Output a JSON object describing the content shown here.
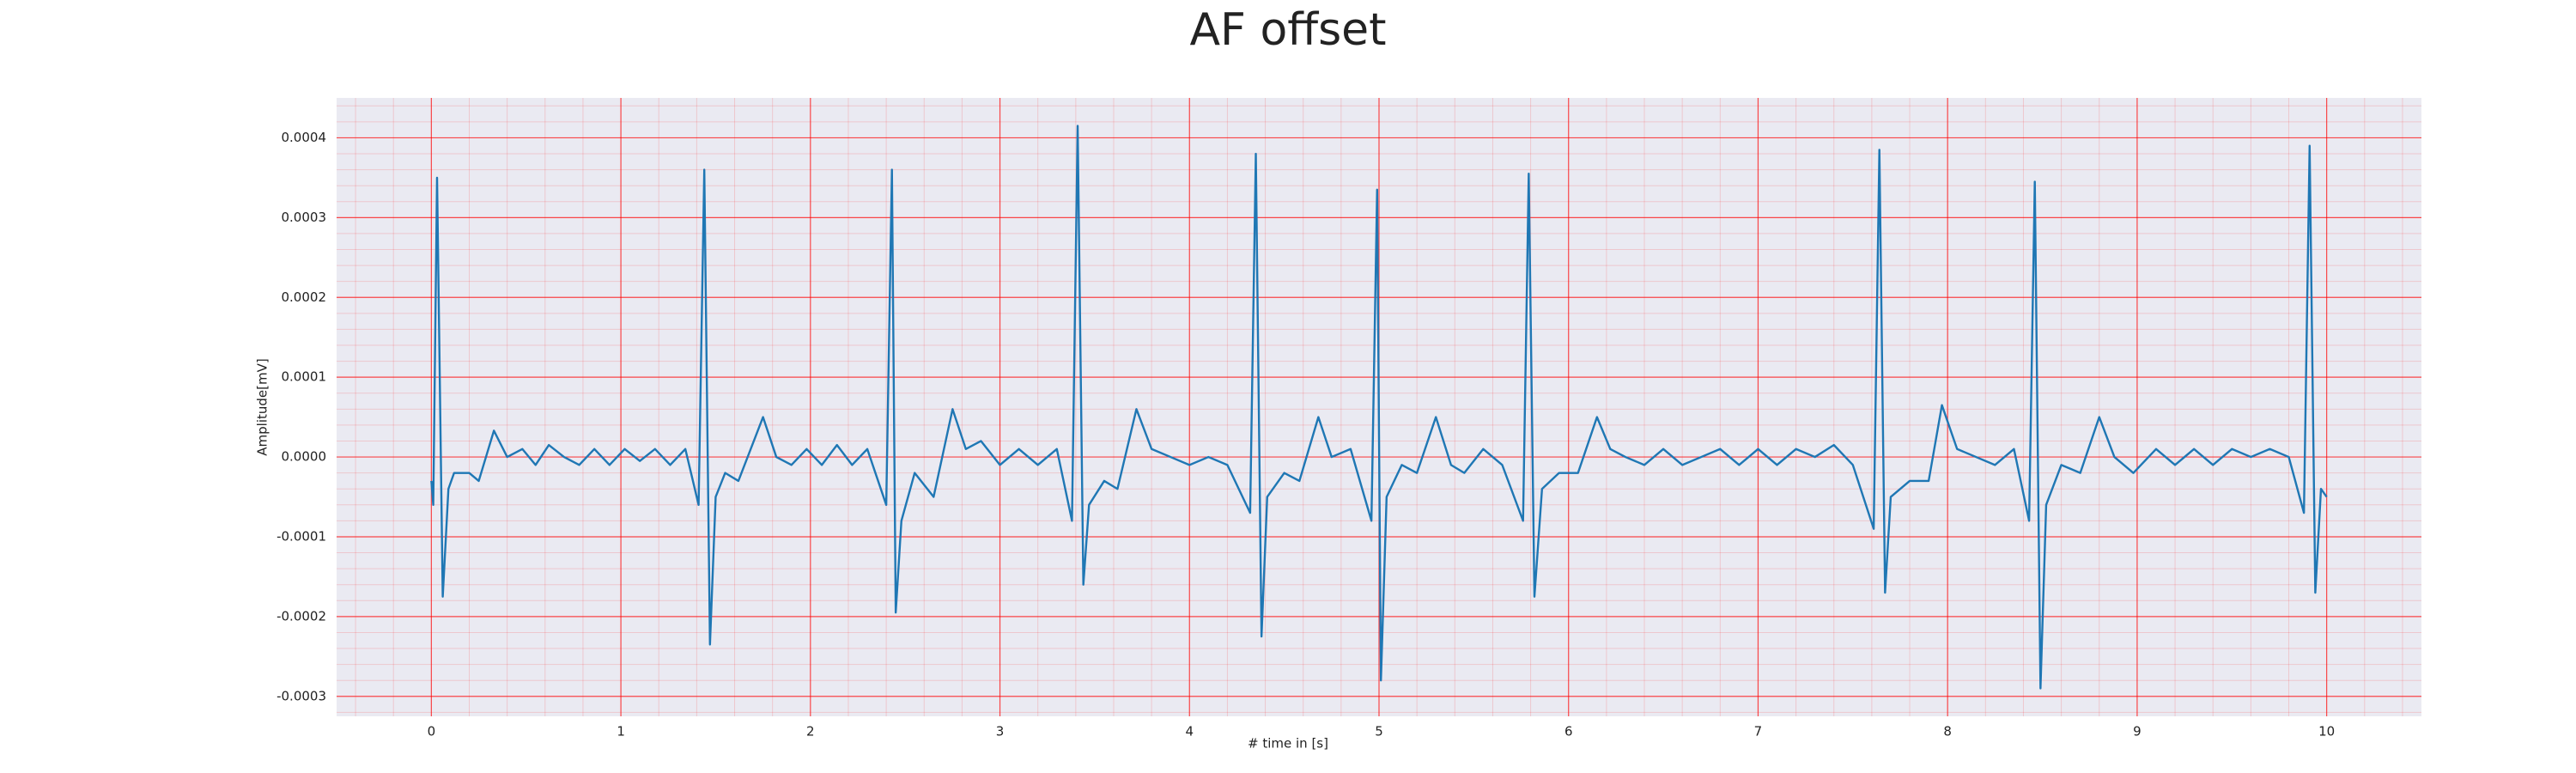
{
  "chart_data": {
    "type": "line",
    "title": "AF offset",
    "xlabel": "# time in [s]",
    "ylabel": "Amplitude[mV]",
    "color": "#1f77b4",
    "grid": true,
    "minor_grid": true,
    "grid_color": "#ff0000",
    "background": "#eaeaf2",
    "xlim": [
      -0.5,
      10.5
    ],
    "xticks": [
      0,
      1,
      2,
      3,
      4,
      5,
      6,
      7,
      8,
      9,
      10
    ],
    "ylim": [
      -0.000325,
      0.00045
    ],
    "yticks": [
      -0.0003,
      -0.0002,
      -0.0001,
      {
        "value": 0,
        "label": "0.0000"
      },
      0.0001,
      0.0002,
      0.0003,
      0.0004
    ],
    "x": [
      0.0,
      0.01,
      0.03,
      0.06,
      0.09,
      0.12,
      0.2,
      0.25,
      0.33,
      0.4,
      0.48,
      0.55,
      0.62,
      0.7,
      0.78,
      0.86,
      0.94,
      1.02,
      1.1,
      1.18,
      1.26,
      1.34,
      1.41,
      1.44,
      1.47,
      1.5,
      1.55,
      1.62,
      1.75,
      1.82,
      1.9,
      1.98,
      2.06,
      2.14,
      2.22,
      2.3,
      2.4,
      2.43,
      2.45,
      2.48,
      2.55,
      2.65,
      2.75,
      2.82,
      2.9,
      3.0,
      3.1,
      3.2,
      3.3,
      3.38,
      3.41,
      3.44,
      3.47,
      3.55,
      3.62,
      3.72,
      3.8,
      3.9,
      4.0,
      4.1,
      4.2,
      4.32,
      4.35,
      4.38,
      4.41,
      4.5,
      4.58,
      4.68,
      4.75,
      4.85,
      4.96,
      4.99,
      5.01,
      5.04,
      5.12,
      5.2,
      5.3,
      5.38,
      5.45,
      5.55,
      5.65,
      5.76,
      5.79,
      5.82,
      5.86,
      5.95,
      6.05,
      6.15,
      6.22,
      6.3,
      6.4,
      6.5,
      6.6,
      6.7,
      6.8,
      6.9,
      7.0,
      7.1,
      7.2,
      7.3,
      7.4,
      7.5,
      7.61,
      7.64,
      7.67,
      7.7,
      7.8,
      7.9,
      7.97,
      8.05,
      8.15,
      8.25,
      8.35,
      8.43,
      8.46,
      8.49,
      8.52,
      8.6,
      8.7,
      8.8,
      8.88,
      8.98,
      9.1,
      9.2,
      9.3,
      9.4,
      9.5,
      9.6,
      9.7,
      9.8,
      9.88,
      9.91,
      9.94,
      9.97,
      10.0
    ],
    "values": [
      -3e-05,
      -6e-05,
      0.00035,
      -0.000175,
      -4e-05,
      -2e-05,
      -2e-05,
      -3e-05,
      3.3e-05,
      0.0,
      1e-05,
      -1e-05,
      1.5e-05,
      0.0,
      -1e-05,
      1e-05,
      -1e-05,
      1e-05,
      -5e-06,
      1e-05,
      -1e-05,
      1e-05,
      -6e-05,
      0.00036,
      -0.000235,
      -5e-05,
      -2e-05,
      -3e-05,
      5e-05,
      0.0,
      -1e-05,
      1e-05,
      -1e-05,
      1.5e-05,
      -1e-05,
      1e-05,
      -6e-05,
      0.00036,
      -0.000195,
      -8e-05,
      -2e-05,
      -5e-05,
      6e-05,
      1e-05,
      2e-05,
      -1e-05,
      1e-05,
      -1e-05,
      1e-05,
      -8e-05,
      0.000415,
      -0.00016,
      -6e-05,
      -3e-05,
      -4e-05,
      6e-05,
      1e-05,
      0.0,
      -1e-05,
      0.0,
      -1e-05,
      -7e-05,
      0.00038,
      -0.000225,
      -5e-05,
      -2e-05,
      -3e-05,
      5e-05,
      0.0,
      1e-05,
      -8e-05,
      0.000335,
      -0.00028,
      -5e-05,
      -1e-05,
      -2e-05,
      5e-05,
      -1e-05,
      -2e-05,
      1e-05,
      -1e-05,
      -8e-05,
      0.000355,
      -0.000175,
      -4e-05,
      -2e-05,
      -2e-05,
      5e-05,
      1e-05,
      0.0,
      -1e-05,
      1e-05,
      -1e-05,
      0.0,
      1e-05,
      -1e-05,
      1e-05,
      -1e-05,
      1e-05,
      0.0,
      1.5e-05,
      -1e-05,
      -9e-05,
      0.000385,
      -0.00017,
      -5e-05,
      -3e-05,
      -3e-05,
      6.5e-05,
      1e-05,
      0.0,
      -1e-05,
      1e-05,
      -8e-05,
      0.000345,
      -0.00029,
      -6e-05,
      -1e-05,
      -2e-05,
      5e-05,
      0.0,
      -2e-05,
      1e-05,
      -1e-05,
      1e-05,
      -1e-05,
      1e-05,
      0.0,
      1e-05,
      0.0,
      -7e-05,
      0.00039,
      -0.00017,
      -4e-05,
      -5e-05
    ]
  }
}
